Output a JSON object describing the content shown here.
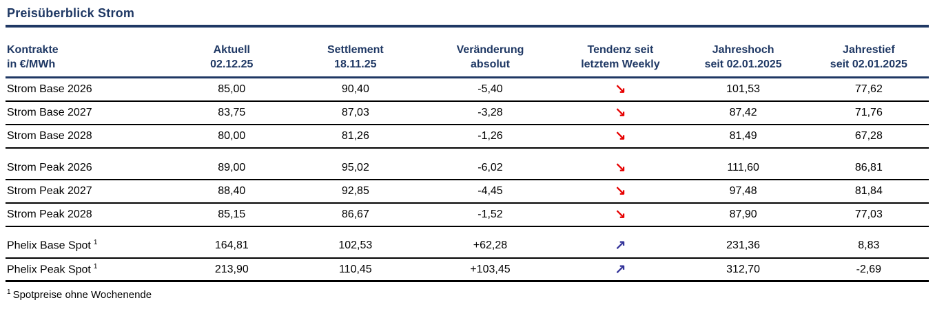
{
  "title": "Preisüberblick Strom",
  "table": {
    "columns": [
      {
        "id": "kontrakte",
        "line1": "Kontrakte",
        "line2": "in €/MWh"
      },
      {
        "id": "aktuell",
        "line1": "Aktuell",
        "line2": "02.12.25"
      },
      {
        "id": "settlement",
        "line1": "Settlement",
        "line2": "18.11.25"
      },
      {
        "id": "veraenderung",
        "line1": "Veränderung",
        "line2": "absolut"
      },
      {
        "id": "tendenz",
        "line1": "Tendenz seit",
        "line2": "letztem Weekly"
      },
      {
        "id": "jahreshoch",
        "line1": "Jahreshoch",
        "line2": "seit 02.01.2025"
      },
      {
        "id": "jahrestief",
        "line1": "Jahrestief",
        "line2": "seit 02.01.2025"
      }
    ],
    "rows": [
      {
        "kontrakt": "Strom Base 2026",
        "aktuell": "85,00",
        "settlement": "90,40",
        "veraenderung": "-5,40",
        "tendenz": "down",
        "jahreshoch": "101,53",
        "jahrestief": "77,62",
        "footnote_ref": false,
        "block_start": false,
        "tall_start": false,
        "last": false
      },
      {
        "kontrakt": "Strom Base 2027",
        "aktuell": "83,75",
        "settlement": "87,03",
        "veraenderung": "-3,28",
        "tendenz": "down",
        "jahreshoch": "87,42",
        "jahrestief": "71,76",
        "footnote_ref": false,
        "block_start": false,
        "tall_start": false,
        "last": false
      },
      {
        "kontrakt": "Strom Base 2028",
        "aktuell": "80,00",
        "settlement": "81,26",
        "veraenderung": "-1,26",
        "tendenz": "down",
        "jahreshoch": "81,49",
        "jahrestief": "67,28",
        "footnote_ref": false,
        "block_start": false,
        "tall_start": false,
        "last": false
      },
      {
        "kontrakt": "Strom Peak 2026",
        "aktuell": "89,00",
        "settlement": "95,02",
        "veraenderung": "-6,02",
        "tendenz": "down",
        "jahreshoch": "111,60",
        "jahrestief": "86,81",
        "footnote_ref": false,
        "block_start": true,
        "tall_start": false,
        "last": false
      },
      {
        "kontrakt": "Strom Peak 2027",
        "aktuell": "88,40",
        "settlement": "92,85",
        "veraenderung": "-4,45",
        "tendenz": "down",
        "jahreshoch": "97,48",
        "jahrestief": "81,84",
        "footnote_ref": false,
        "block_start": false,
        "tall_start": false,
        "last": false
      },
      {
        "kontrakt": "Strom Peak 2028",
        "aktuell": "85,15",
        "settlement": "86,67",
        "veraenderung": "-1,52",
        "tendenz": "down",
        "jahreshoch": "87,90",
        "jahrestief": "77,03",
        "footnote_ref": false,
        "block_start": false,
        "tall_start": false,
        "last": false
      },
      {
        "kontrakt": "Phelix Base Spot",
        "aktuell": "164,81",
        "settlement": "102,53",
        "veraenderung": "+62,28",
        "tendenz": "up",
        "jahreshoch": "231,36",
        "jahrestief": "8,83",
        "footnote_ref": true,
        "block_start": false,
        "tall_start": true,
        "last": false
      },
      {
        "kontrakt": "Phelix Peak Spot",
        "aktuell": "213,90",
        "settlement": "110,45",
        "veraenderung": "+103,45",
        "tendenz": "up",
        "jahreshoch": "312,70",
        "jahrestief": "-2,69",
        "footnote_ref": true,
        "block_start": false,
        "tall_start": false,
        "last": true
      }
    ]
  },
  "tendenz_glyphs": {
    "down": "↘",
    "up": "↗"
  },
  "colors": {
    "heading_navy": "#1f3864",
    "arrow_down_red": "#e60000",
    "arrow_up_blue": "#333399",
    "row_line_black": "#000000"
  },
  "footnote": {
    "marker": "1",
    "text": "Spotpreise ohne Wochenende"
  },
  "chart_data": {
    "type": "table",
    "title": "Preisüberblick Strom",
    "unit": "€/MWh",
    "columns": [
      "Kontrakte in €/MWh",
      "Aktuell 02.12.25",
      "Settlement 18.11.25",
      "Veränderung absolut",
      "Tendenz seit letztem Weekly",
      "Jahreshoch seit 02.01.2025",
      "Jahrestief seit 02.01.2025"
    ],
    "rows": [
      [
        "Strom Base 2026",
        85.0,
        90.4,
        -5.4,
        "down",
        101.53,
        77.62
      ],
      [
        "Strom Base 2027",
        83.75,
        87.03,
        -3.28,
        "down",
        87.42,
        71.76
      ],
      [
        "Strom Base 2028",
        80.0,
        81.26,
        -1.26,
        "down",
        81.49,
        67.28
      ],
      [
        "Strom Peak 2026",
        89.0,
        95.02,
        -6.02,
        "down",
        111.6,
        86.81
      ],
      [
        "Strom Peak 2027",
        88.4,
        92.85,
        -4.45,
        "down",
        97.48,
        81.84
      ],
      [
        "Strom Peak 2028",
        85.15,
        86.67,
        -1.52,
        "down",
        87.9,
        77.03
      ],
      [
        "Phelix Base Spot",
        164.81,
        102.53,
        62.28,
        "up",
        231.36,
        8.83
      ],
      [
        "Phelix Peak Spot",
        213.9,
        110.45,
        103.45,
        "up",
        312.7,
        -2.69
      ]
    ]
  }
}
